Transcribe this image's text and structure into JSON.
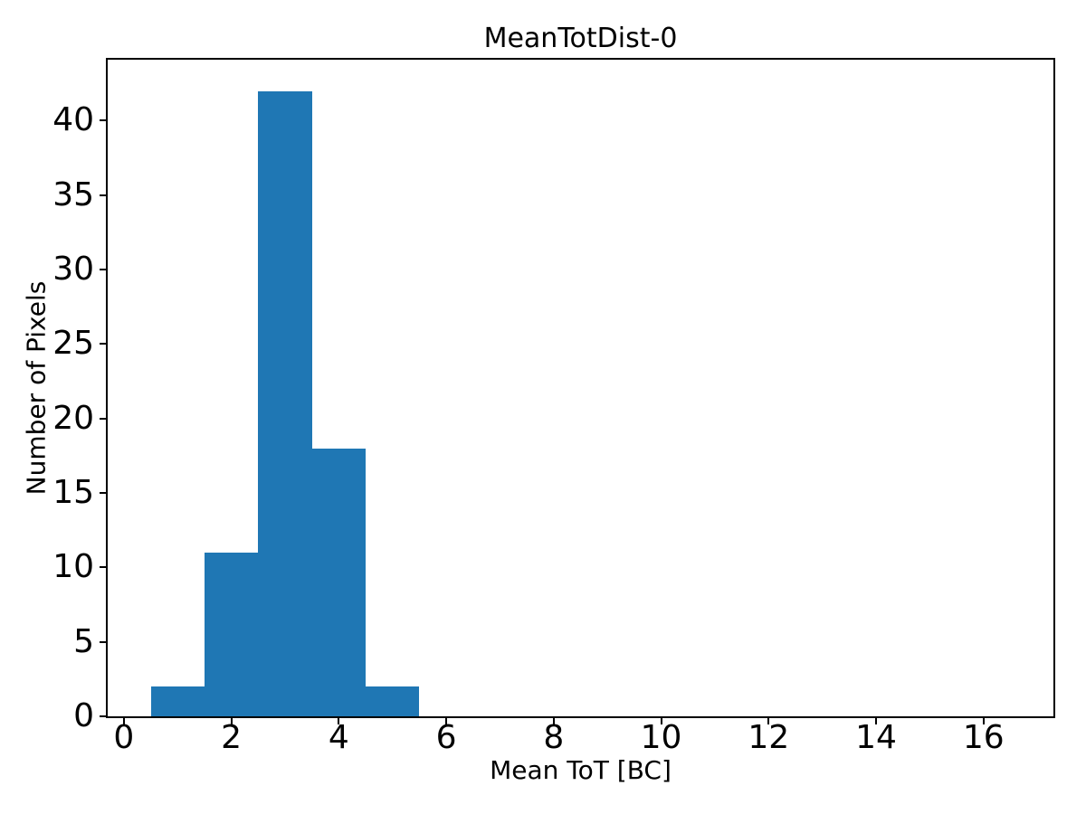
{
  "figure": {
    "background": "#ffffff"
  },
  "chart_data": {
    "type": "bar",
    "subtype": "histogram",
    "title": "MeanTotDist-0",
    "xlabel": "Mean ToT [BC]",
    "ylabel": "Number of Pixels",
    "bin_edges": [
      0.5,
      1.5,
      2.5,
      3.5,
      4.5,
      5.5
    ],
    "counts": [
      2,
      11,
      42,
      18,
      2
    ],
    "xticks": [
      0,
      2,
      4,
      6,
      8,
      10,
      12,
      14,
      16
    ],
    "yticks": [
      0,
      5,
      10,
      15,
      20,
      25,
      30,
      35,
      40
    ],
    "xlim": [
      -0.3,
      17.3
    ],
    "ylim": [
      0,
      44.1
    ],
    "bar_color": "#1f77b4",
    "axis_color": "#000000",
    "grid": false,
    "legend": null
  }
}
